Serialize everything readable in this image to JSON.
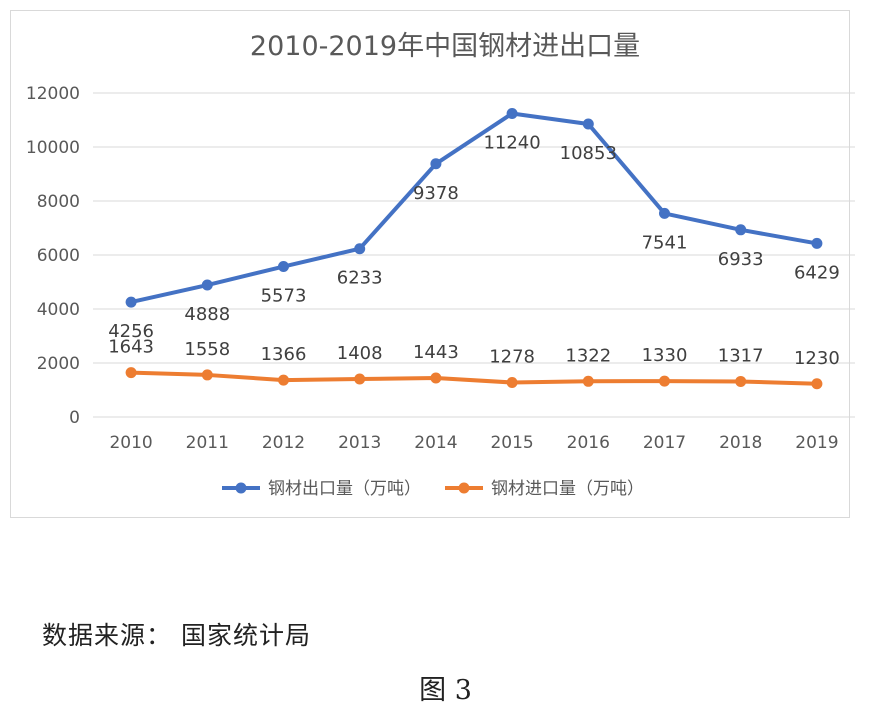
{
  "chart_data": {
    "type": "line",
    "title": "2010-2019年中国钢材进出口量",
    "categories": [
      "2010",
      "2011",
      "2012",
      "2013",
      "2014",
      "2015",
      "2016",
      "2017",
      "2018",
      "2019"
    ],
    "ylim": [
      0,
      12000
    ],
    "yticks": [
      0,
      2000,
      4000,
      6000,
      8000,
      10000,
      12000
    ],
    "grid": true,
    "legend": "bottom",
    "series": [
      {
        "name": "钢材出口量（万吨）",
        "color": "#4472c4",
        "values": [
          4256,
          4888,
          5573,
          6233,
          9378,
          11240,
          10853,
          7541,
          6933,
          6429
        ]
      },
      {
        "name": "钢材进口量（万吨）",
        "color": "#ed7d31",
        "values": [
          1643,
          1558,
          1366,
          1408,
          1443,
          1278,
          1322,
          1330,
          1317,
          1230
        ]
      }
    ]
  },
  "source_text": "数据来源： 国家统计局",
  "figure_caption": "图 3"
}
